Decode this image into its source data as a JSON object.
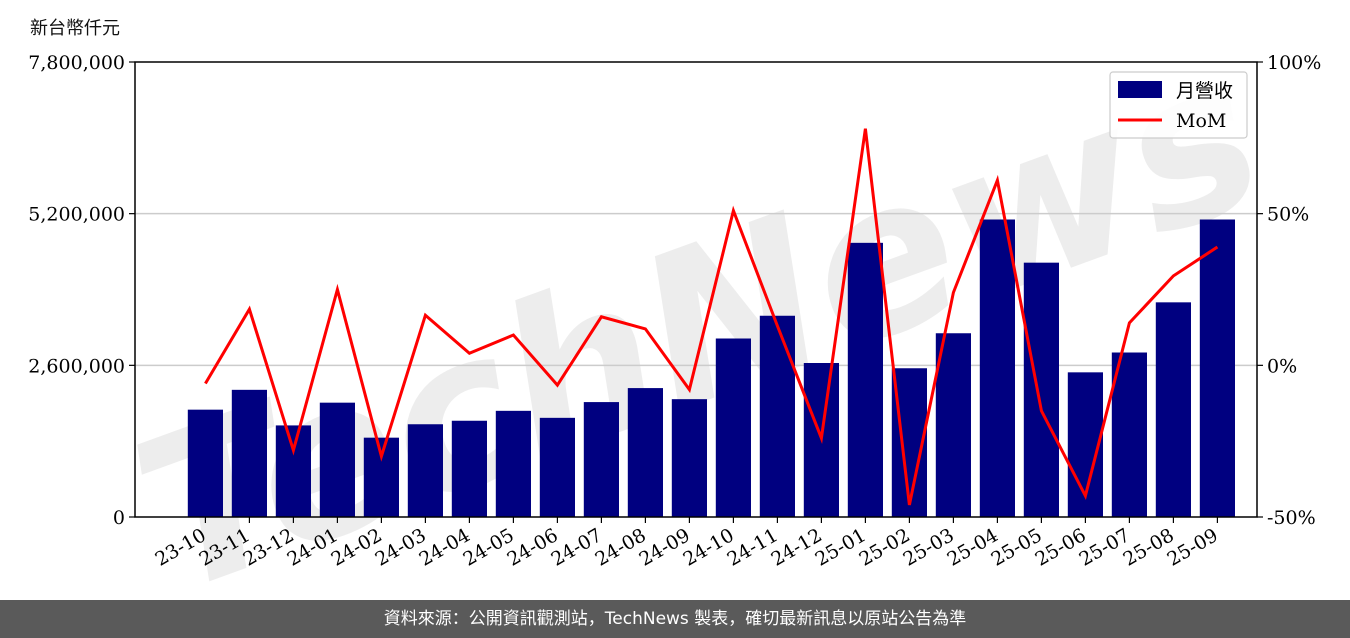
{
  "unit_label": "新台幣仟元",
  "watermark": "TechNews",
  "footer": "資料來源：公開資訊觀測站，TechNews 製表，確切最新訊息以原站公告為準",
  "chart_data": {
    "type": "bar",
    "categories": [
      "23-10",
      "23-11",
      "23-12",
      "24-01",
      "24-02",
      "24-03",
      "24-04",
      "24-05",
      "24-06",
      "24-07",
      "24-08",
      "24-09",
      "24-10",
      "24-11",
      "24-12",
      "25-01",
      "25-02",
      "25-03",
      "25-04",
      "25-05",
      "25-06",
      "25-07",
      "25-08",
      "25-09"
    ],
    "series": [
      {
        "name": "月營收",
        "type": "bar",
        "axis": "left",
        "color": "#000080",
        "values": [
          1840000,
          2180000,
          1570000,
          1960000,
          1360000,
          1590000,
          1650000,
          1820000,
          1700000,
          1970000,
          2210000,
          2020000,
          3060000,
          3450000,
          2640000,
          4700000,
          2550000,
          3150000,
          5100000,
          4360000,
          2480000,
          2820000,
          3680000,
          5100000
        ]
      },
      {
        "name": "MoM",
        "type": "line",
        "axis": "right",
        "color": "#ff0000",
        "values": [
          -6,
          18.5,
          -28,
          25,
          -30,
          16.5,
          4,
          10,
          -6.5,
          16,
          12,
          -8,
          51,
          13,
          -24,
          78,
          -46,
          24,
          61,
          -15,
          -43,
          14,
          29.5,
          39
        ]
      }
    ],
    "left_axis": {
      "ylim": [
        0,
        7800000
      ],
      "ticks": [
        0,
        2600000,
        5200000,
        7800000
      ],
      "tick_labels": [
        "0",
        "2,600,000",
        "5,200,000",
        "7,800,000"
      ]
    },
    "right_axis": {
      "ylim": [
        -50,
        100
      ],
      "ticks": [
        -50,
        0,
        50,
        100
      ],
      "tick_labels": [
        "-50%",
        "0%",
        "50%",
        "100%"
      ]
    },
    "grid": "horizontal",
    "legend": "top-right"
  }
}
